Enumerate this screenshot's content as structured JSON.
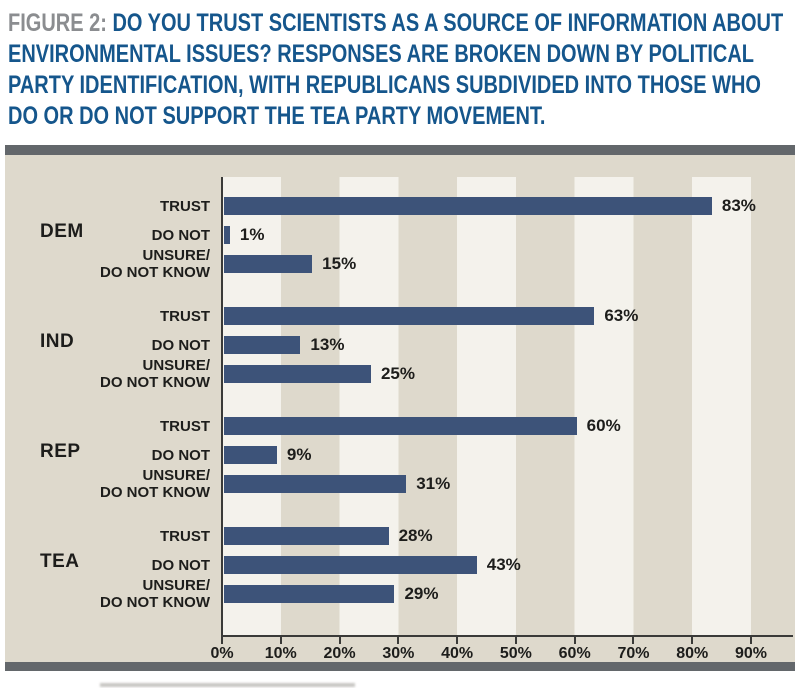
{
  "figure": {
    "label": "FIGURE 2:",
    "title": "DO YOU TRUST SCIENTISTS AS A SOURCE OF INFORMATION ABOUT\nENVIRONMENTAL ISSUES? RESPONSES ARE BROKEN DOWN BY POLITICAL\nPARTY IDENTIFICATION, WITH REPUBLICANS SUBDIVIDED INTO THOSE WHO\nDO OR DO NOT SUPPORT THE TEA PARTY MOVEMENT."
  },
  "colors": {
    "figure_label": "#8b8d90",
    "title": "#15568c",
    "chart_bg": "#ded9cc",
    "stripe_light": "#f4f2ec",
    "border": "#63676b",
    "bar": "#3d5379",
    "axis": "#3a3a38",
    "text": "#1d1d1b"
  },
  "chart_data": {
    "type": "bar",
    "orientation": "horizontal",
    "title": "Trust in scientists as a source of information about environmental issues, by party identification",
    "xlabel": "",
    "ylabel": "",
    "x_axis": {
      "min": 0,
      "max": 90,
      "unit": "%",
      "ticks": [
        "0%",
        "10%",
        "20%",
        "30%",
        "40%",
        "50%",
        "60%",
        "70%",
        "80%",
        "90%"
      ]
    },
    "layout": {
      "grid": "striped-background",
      "value_labels": "end-of-bar",
      "legend": "none"
    },
    "groups": [
      {
        "label": "DEM",
        "rows": [
          {
            "label": "TRUST",
            "value": 83,
            "value_label": "83%"
          },
          {
            "label": "DO NOT",
            "value": 1,
            "value_label": "1%"
          },
          {
            "label": "UNSURE/\nDO NOT KNOW",
            "value": 15,
            "value_label": "15%"
          }
        ]
      },
      {
        "label": "IND",
        "rows": [
          {
            "label": "TRUST",
            "value": 63,
            "value_label": "63%"
          },
          {
            "label": "DO NOT",
            "value": 13,
            "value_label": "13%"
          },
          {
            "label": "UNSURE/\nDO NOT KNOW",
            "value": 25,
            "value_label": "25%"
          }
        ]
      },
      {
        "label": "REP",
        "rows": [
          {
            "label": "TRUST",
            "value": 60,
            "value_label": "60%"
          },
          {
            "label": "DO NOT",
            "value": 9,
            "value_label": "9%"
          },
          {
            "label": "UNSURE/\nDO NOT KNOW",
            "value": 31,
            "value_label": "31%"
          }
        ]
      },
      {
        "label": "TEA",
        "rows": [
          {
            "label": "TRUST",
            "value": 28,
            "value_label": "28%"
          },
          {
            "label": "DO NOT",
            "value": 43,
            "value_label": "43%"
          },
          {
            "label": "UNSURE/\nDO NOT KNOW",
            "value": 29,
            "value_label": "29%"
          }
        ]
      }
    ]
  }
}
